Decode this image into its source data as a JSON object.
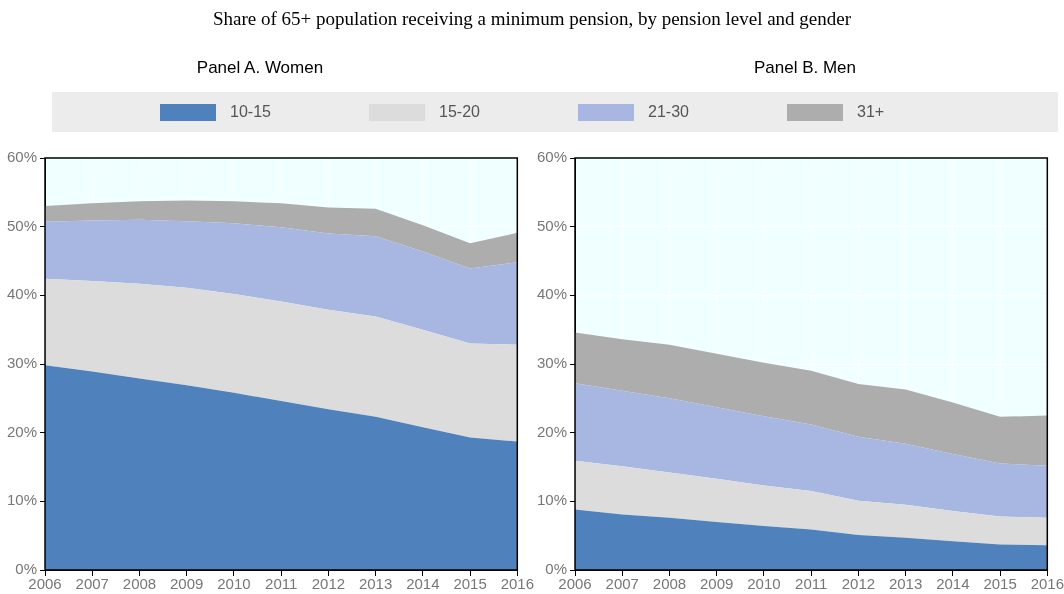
{
  "chart_data": [
    {
      "type": "area",
      "title": "Share of 65+ population receiving a minimum pension, by pension level and gender",
      "subtitle": "Panel A. Women",
      "stacked": true,
      "grid": true,
      "legend": "top",
      "categories": [
        "2006",
        "2007",
        "2008",
        "2009",
        "2010",
        "2011",
        "2012",
        "2013",
        "2014",
        "2015",
        "2016"
      ],
      "ylim": [
        0,
        60
      ],
      "yticks": [
        {
          "value": 0,
          "label": "0%"
        },
        {
          "value": 10,
          "label": "10%"
        },
        {
          "value": 20,
          "label": "20%"
        },
        {
          "value": 30,
          "label": "30%"
        },
        {
          "value": 40,
          "label": "40%"
        },
        {
          "value": 50,
          "label": "50%"
        },
        {
          "value": 60,
          "label": "60%"
        }
      ],
      "series": [
        {
          "name": "10-15",
          "color": "#4f81bd",
          "values": [
            29.8,
            28.9,
            27.9,
            26.9,
            25.8,
            24.6,
            23.4,
            22.3,
            20.8,
            19.3,
            18.7
          ]
        },
        {
          "name": "15-20",
          "color": "#dcdcdc",
          "values": [
            12.6,
            13.2,
            13.8,
            14.2,
            14.4,
            14.5,
            14.5,
            14.6,
            14.2,
            13.7,
            14.1
          ]
        },
        {
          "name": "21-30",
          "color": "#a7b7e2",
          "values": [
            8.3,
            8.8,
            9.3,
            9.7,
            10.3,
            10.8,
            11.1,
            11.7,
            11.4,
            10.9,
            12.0
          ]
        },
        {
          "name": "31+",
          "color": "#adadad",
          "values": [
            2.3,
            2.5,
            2.7,
            3.0,
            3.2,
            3.5,
            3.8,
            4.0,
            3.8,
            3.7,
            4.3
          ]
        }
      ]
    },
    {
      "type": "area",
      "title": "Panel B. Men",
      "stacked": true,
      "grid": true,
      "categories": [
        "2006",
        "2007",
        "2008",
        "2009",
        "2010",
        "2011",
        "2012",
        "2013",
        "2014",
        "2015",
        "2016"
      ],
      "ylim": [
        0,
        60
      ],
      "yticks": [
        {
          "value": 0,
          "label": "0%"
        },
        {
          "value": 10,
          "label": "10%"
        },
        {
          "value": 20,
          "label": "20%"
        },
        {
          "value": 30,
          "label": "30%"
        },
        {
          "value": 40,
          "label": "40%"
        },
        {
          "value": 50,
          "label": "50%"
        },
        {
          "value": 60,
          "label": "60%"
        }
      ],
      "series": [
        {
          "color": "#4f81bd",
          "values": [
            8.8,
            8.1,
            7.6,
            7.0,
            6.4,
            5.9,
            5.1,
            4.7,
            4.2,
            3.7,
            3.6
          ]
        },
        {
          "color": "#dcdcdc",
          "values": [
            7.1,
            7.0,
            6.6,
            6.3,
            5.9,
            5.6,
            5.0,
            4.8,
            4.4,
            4.1,
            4.0
          ]
        },
        {
          "color": "#a7b7e2",
          "values": [
            11.3,
            11.0,
            10.8,
            10.4,
            10.1,
            9.7,
            9.3,
            8.9,
            8.3,
            7.7,
            7.6
          ]
        },
        {
          "color": "#adadad",
          "values": [
            7.4,
            7.5,
            7.8,
            7.8,
            7.8,
            7.8,
            7.7,
            7.9,
            7.5,
            6.8,
            7.3
          ]
        }
      ]
    }
  ]
}
